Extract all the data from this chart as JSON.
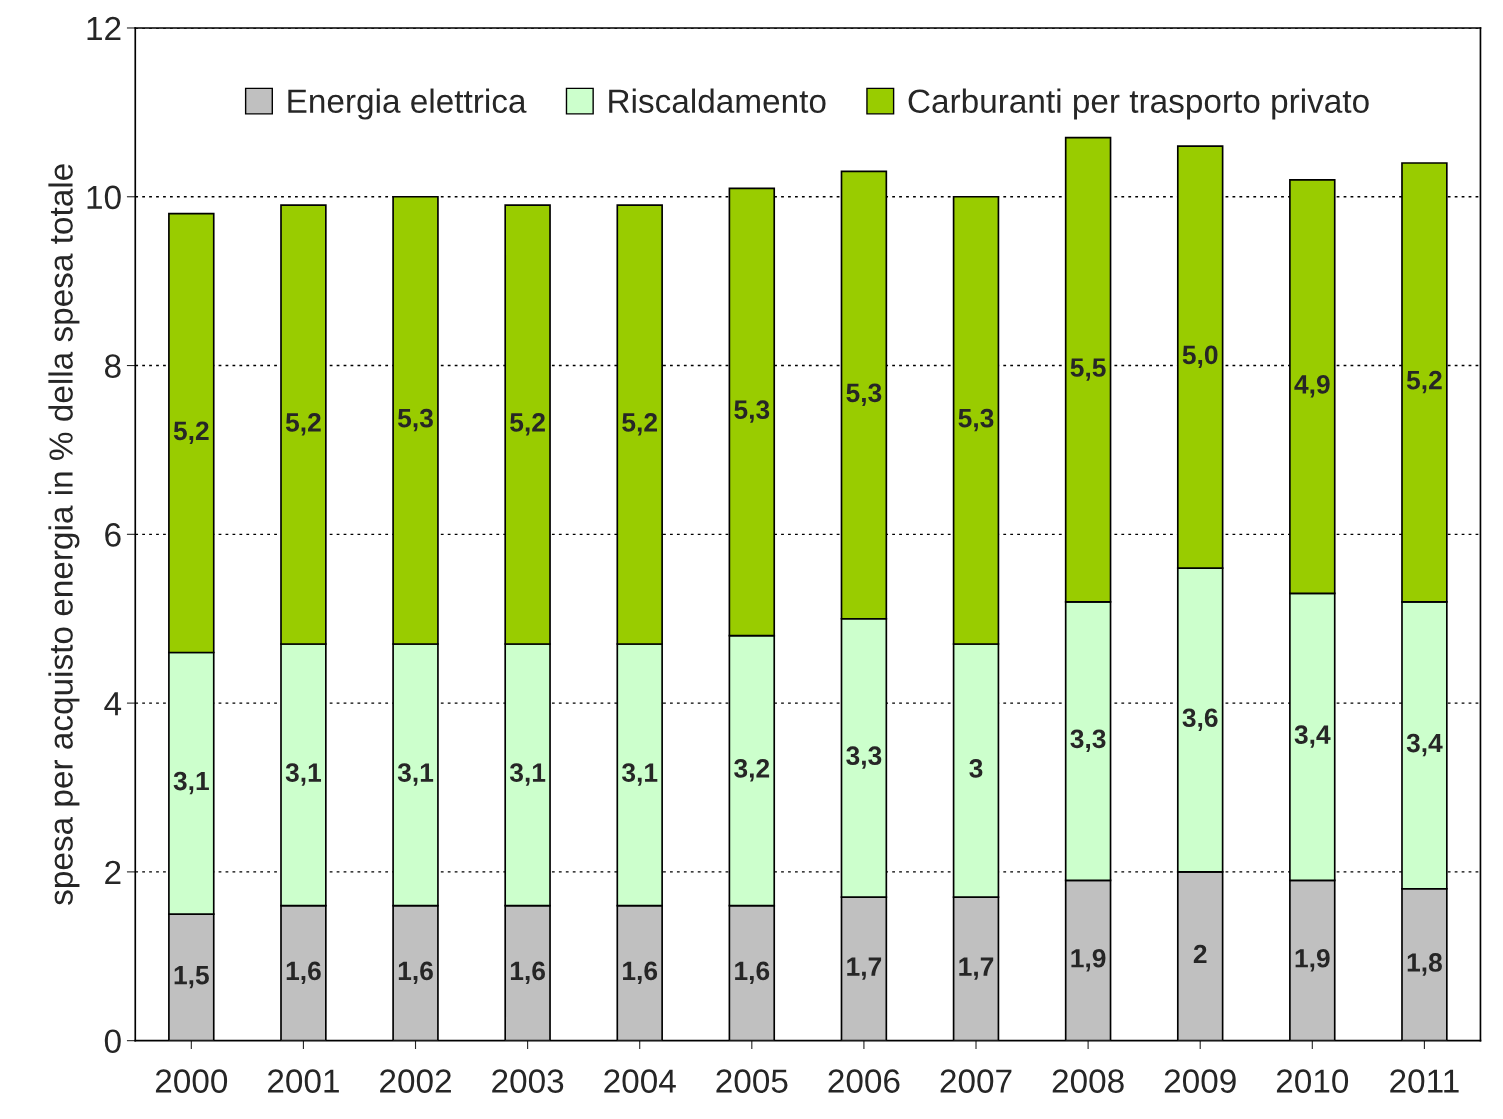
{
  "chart_data": {
    "type": "bar",
    "stacked": true,
    "ylabel": "spesa per acquisto energia in % della spesa totale",
    "categories": [
      "2000",
      "2001",
      "2002",
      "2003",
      "2004",
      "2005",
      "2006",
      "2007",
      "2008",
      "2009",
      "2010",
      "2011"
    ],
    "series": [
      {
        "name": "Energia elettrica",
        "color": "#c0c0c0",
        "values": [
          1.5,
          1.6,
          1.6,
          1.6,
          1.6,
          1.6,
          1.7,
          1.7,
          1.9,
          2,
          1.9,
          1.8
        ],
        "value_labels": [
          "1,5",
          "1,6",
          "1,6",
          "1,6",
          "1,6",
          "1,6",
          "1,7",
          "1,7",
          "1,9",
          "2",
          "1,9",
          "1,8"
        ]
      },
      {
        "name": "Riscaldamento",
        "color": "#ccffcc",
        "values": [
          3.1,
          3.1,
          3.1,
          3.1,
          3.1,
          3.2,
          3.3,
          3,
          3.3,
          3.6,
          3.4,
          3.4
        ],
        "value_labels": [
          "3,1",
          "3,1",
          "3,1",
          "3,1",
          "3,1",
          "3,2",
          "3,3",
          "3",
          "3,3",
          "3,6",
          "3,4",
          "3,4"
        ]
      },
      {
        "name": "Carburanti per trasporto privato",
        "color": "#99cc00",
        "values": [
          5.2,
          5.2,
          5.3,
          5.2,
          5.2,
          5.3,
          5.3,
          5.3,
          5.5,
          5.0,
          4.9,
          5.2
        ],
        "value_labels": [
          "5,2",
          "5,2",
          "5,3",
          "5,2",
          "5,2",
          "5,3",
          "5,3",
          "5,3",
          "5,5",
          "5,0",
          "4,9",
          "5,2"
        ]
      }
    ],
    "ylim": [
      0,
      12
    ],
    "yticks": [
      0,
      2,
      4,
      6,
      8,
      10,
      12
    ],
    "grid": "y",
    "legend": "top"
  }
}
